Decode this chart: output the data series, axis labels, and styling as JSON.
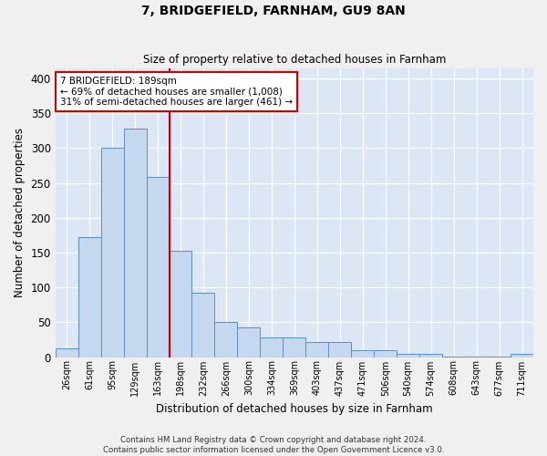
{
  "title": "7, BRIDGEFIELD, FARNHAM, GU9 8AN",
  "subtitle": "Size of property relative to detached houses in Farnham",
  "xlabel": "Distribution of detached houses by size in Farnham",
  "ylabel": "Number of detached properties",
  "bin_labels": [
    "26sqm",
    "61sqm",
    "95sqm",
    "129sqm",
    "163sqm",
    "198sqm",
    "232sqm",
    "266sqm",
    "300sqm",
    "334sqm",
    "369sqm",
    "403sqm",
    "437sqm",
    "471sqm",
    "506sqm",
    "540sqm",
    "574sqm",
    "608sqm",
    "643sqm",
    "677sqm",
    "711sqm"
  ],
  "bar_heights": [
    12,
    172,
    301,
    328,
    258,
    153,
    92,
    50,
    43,
    28,
    28,
    21,
    21,
    10,
    10,
    5,
    5,
    1,
    1,
    1,
    4
  ],
  "bar_color": "#c5d8f0",
  "bar_edge_color": "#5b8ec4",
  "vline_x_index": 5,
  "vline_color": "#cc0000",
  "annotation_text": "7 BRIDGEFIELD: 189sqm\n← 69% of detached houses are smaller (1,008)\n31% of semi-detached houses are larger (461) →",
  "annotation_box_color": "#ffffff",
  "annotation_box_edge": "#cc0000",
  "footer": "Contains HM Land Registry data © Crown copyright and database right 2024.\nContains public sector information licensed under the Open Government Licence v3.0.",
  "ylim": [
    0,
    415
  ],
  "plot_background": "#dce6f5",
  "fig_background": "#f0f0f0",
  "figsize": [
    6.0,
    5.0
  ],
  "dpi": 100
}
